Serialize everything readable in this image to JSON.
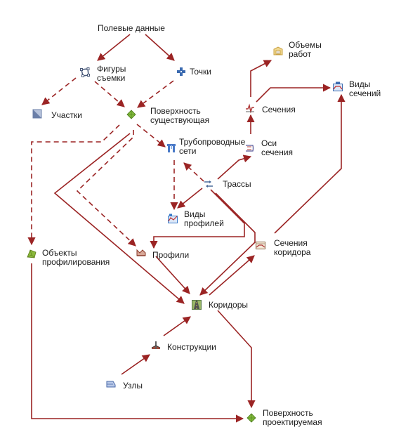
{
  "nodes": [
    {
      "id": "field-data",
      "label": "Полевые данные",
      "icon": "none"
    },
    {
      "id": "survey-figures",
      "label": "Фигуры\nсъемки",
      "icon": "figure-icon",
      "color": "#4a5a7a"
    },
    {
      "id": "points",
      "label": "Точки",
      "icon": "point-cross-icon",
      "color": "#3a6ab0"
    },
    {
      "id": "parcels",
      "label": "Участки",
      "icon": "parcel-icon",
      "color": "#6b7fa8"
    },
    {
      "id": "existing-surface",
      "label": "Поверхность\nсуществующая",
      "icon": "surface-icon",
      "color": "#7fb83a"
    },
    {
      "id": "pipe-networks",
      "label": "Трубопроводные\nсети",
      "icon": "pipe-icon",
      "color": "#4a7ac8"
    },
    {
      "id": "alignments",
      "label": "Трассы",
      "icon": "alignment-icon",
      "color": "#4a6a9a"
    },
    {
      "id": "profile-views",
      "label": "Виды\nпрофилей",
      "icon": "profile-view-icon",
      "color": "#3a7ac8"
    },
    {
      "id": "profiles",
      "label": "Профили",
      "icon": "profile-icon",
      "color": "#8a3a2a"
    },
    {
      "id": "grading",
      "label": "Объекты\nпрофилирования",
      "icon": "grading-icon",
      "color": "#8ab83a"
    },
    {
      "id": "corridors",
      "label": "Коридоры",
      "icon": "corridor-icon",
      "color": "#5a7a4a"
    },
    {
      "id": "assemblies",
      "label": "Конструкции",
      "icon": "assembly-icon",
      "color": "#a04a3a"
    },
    {
      "id": "subassemblies",
      "label": "Узлы",
      "icon": "subassembly-icon",
      "color": "#4a6aa8"
    },
    {
      "id": "design-surface",
      "label": "Поверхность\nпроектируемая",
      "icon": "surface-icon",
      "color": "#7fb83a"
    },
    {
      "id": "corridor-sections",
      "label": "Сечения\nкоридора",
      "icon": "corridor-section-icon",
      "color": "#8a6a4a"
    },
    {
      "id": "sample-lines",
      "label": "Оси\nсечения",
      "icon": "sample-line-icon",
      "color": "#5a5a9a"
    },
    {
      "id": "sections",
      "label": "Сечения",
      "icon": "section-icon",
      "color": "#b03a3a"
    },
    {
      "id": "volumes",
      "label": "Объемы\nработ",
      "icon": "volume-icon",
      "color": "#c8a040"
    },
    {
      "id": "section-views",
      "label": "Виды\nсечений",
      "icon": "section-view-icon",
      "color": "#3a6ab0"
    }
  ],
  "edges": [
    {
      "from": "field-data",
      "to": "survey-figures",
      "style": "solid"
    },
    {
      "from": "field-data",
      "to": "points",
      "style": "solid"
    },
    {
      "from": "survey-figures",
      "to": "parcels",
      "style": "dashed"
    },
    {
      "from": "survey-figures",
      "to": "existing-surface",
      "style": "dashed"
    },
    {
      "from": "points",
      "to": "existing-surface",
      "style": "dashed"
    },
    {
      "from": "existing-surface",
      "to": "pipe-networks",
      "style": "dashed"
    },
    {
      "from": "existing-surface",
      "to": "grading",
      "style": "dashed"
    },
    {
      "from": "existing-surface",
      "to": "profiles",
      "style": "dashed"
    },
    {
      "from": "existing-surface",
      "to": "corridors",
      "style": "solid"
    },
    {
      "from": "pipe-networks",
      "to": "profile-views",
      "style": "dashed"
    },
    {
      "from": "alignments",
      "to": "pipe-networks",
      "style": "dashed"
    },
    {
      "from": "alignments",
      "to": "profile-views",
      "style": "solid"
    },
    {
      "from": "alignments",
      "to": "sample-lines",
      "style": "solid"
    },
    {
      "from": "alignments",
      "to": "profiles",
      "style": "solid"
    },
    {
      "from": "alignments",
      "to": "corridors",
      "style": "solid"
    },
    {
      "from": "profiles",
      "to": "corridors",
      "style": "solid"
    },
    {
      "from": "grading",
      "to": "design-surface",
      "style": "solid"
    },
    {
      "from": "subassemblies",
      "to": "assemblies",
      "style": "solid"
    },
    {
      "from": "assemblies",
      "to": "corridors",
      "style": "solid"
    },
    {
      "from": "corridors",
      "to": "corridor-sections",
      "style": "solid"
    },
    {
      "from": "corridors",
      "to": "design-surface",
      "style": "solid"
    },
    {
      "from": "corridor-sections",
      "to": "section-views",
      "style": "solid"
    },
    {
      "from": "sample-lines",
      "to": "sections",
      "style": "solid"
    },
    {
      "from": "sections",
      "to": "volumes",
      "style": "solid"
    },
    {
      "from": "sections",
      "to": "section-views",
      "style": "solid"
    }
  ],
  "colors": {
    "edge": "#9b2424",
    "text": "#1a1a1a",
    "background": "#ffffff"
  }
}
